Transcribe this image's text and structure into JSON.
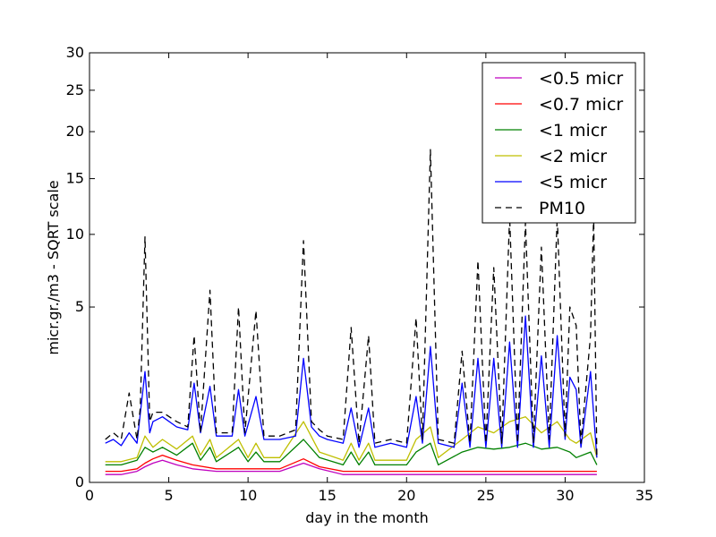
{
  "chart_data": {
    "type": "line",
    "title": "",
    "xlabel": "day in the month",
    "ylabel": "micr.gr./m3 - SQRT scale",
    "xlim": [
      0,
      35
    ],
    "ylim": [
      0,
      30
    ],
    "y_scale": "sqrt",
    "grid": false,
    "legend_position": "top-right",
    "x_ticks": [
      "0",
      "5",
      "10",
      "15",
      "20",
      "25",
      "30",
      "35"
    ],
    "y_ticks": [
      "0",
      "5",
      "10",
      "15",
      "20",
      "25",
      "30"
    ],
    "x_tick_values": [
      0,
      5,
      10,
      15,
      20,
      25,
      30,
      35
    ],
    "y_tick_values": [
      0,
      5,
      10,
      15,
      20,
      25,
      30
    ],
    "series": [
      {
        "name": "<0.5 micr",
        "color": "#bf00bf",
        "style": "solid",
        "points": [
          [
            1,
            0.01
          ],
          [
            2,
            0.01
          ],
          [
            3,
            0.02
          ],
          [
            3.5,
            0.04
          ],
          [
            4,
            0.06
          ],
          [
            4.6,
            0.08
          ],
          [
            5.5,
            0.05
          ],
          [
            6.5,
            0.03
          ],
          [
            8,
            0.02
          ],
          [
            10,
            0.02
          ],
          [
            12,
            0.02
          ],
          [
            13.5,
            0.06
          ],
          [
            14.5,
            0.03
          ],
          [
            16,
            0.01
          ],
          [
            18,
            0.01
          ],
          [
            20,
            0.01
          ],
          [
            22,
            0.01
          ],
          [
            24,
            0.01
          ],
          [
            26,
            0.01
          ],
          [
            28,
            0.01
          ],
          [
            30,
            0.01
          ],
          [
            32,
            0.01
          ]
        ]
      },
      {
        "name": "<0.7 micr",
        "color": "#ff0000",
        "style": "solid",
        "points": [
          [
            1,
            0.02
          ],
          [
            2,
            0.02
          ],
          [
            3,
            0.03
          ],
          [
            3.5,
            0.06
          ],
          [
            4,
            0.09
          ],
          [
            4.6,
            0.12
          ],
          [
            5.5,
            0.08
          ],
          [
            6.5,
            0.05
          ],
          [
            8,
            0.03
          ],
          [
            10,
            0.03
          ],
          [
            12,
            0.03
          ],
          [
            13.5,
            0.09
          ],
          [
            14.5,
            0.04
          ],
          [
            16,
            0.02
          ],
          [
            18,
            0.02
          ],
          [
            20,
            0.02
          ],
          [
            22,
            0.02
          ],
          [
            24,
            0.02
          ],
          [
            26,
            0.02
          ],
          [
            28,
            0.02
          ],
          [
            30,
            0.02
          ],
          [
            32,
            0.02
          ]
        ]
      },
      {
        "name": "<1 micr",
        "color": "#008000",
        "style": "solid",
        "points": [
          [
            1,
            0.05
          ],
          [
            2,
            0.05
          ],
          [
            3,
            0.08
          ],
          [
            3.5,
            0.2
          ],
          [
            4,
            0.15
          ],
          [
            4.6,
            0.2
          ],
          [
            5.5,
            0.12
          ],
          [
            6.5,
            0.25
          ],
          [
            7,
            0.08
          ],
          [
            7.6,
            0.2
          ],
          [
            8,
            0.07
          ],
          [
            9.4,
            0.2
          ],
          [
            10,
            0.07
          ],
          [
            10.5,
            0.15
          ],
          [
            11,
            0.07
          ],
          [
            12,
            0.07
          ],
          [
            13.5,
            0.3
          ],
          [
            14.5,
            0.1
          ],
          [
            16,
            0.05
          ],
          [
            16.5,
            0.15
          ],
          [
            17,
            0.05
          ],
          [
            17.6,
            0.15
          ],
          [
            18,
            0.05
          ],
          [
            20,
            0.05
          ],
          [
            20.6,
            0.15
          ],
          [
            21.5,
            0.25
          ],
          [
            22,
            0.05
          ],
          [
            23.5,
            0.15
          ],
          [
            24.5,
            0.2
          ],
          [
            25.5,
            0.18
          ],
          [
            26.5,
            0.2
          ],
          [
            27.5,
            0.25
          ],
          [
            28.5,
            0.18
          ],
          [
            29.5,
            0.2
          ],
          [
            30.3,
            0.15
          ],
          [
            30.7,
            0.1
          ],
          [
            31.6,
            0.15
          ],
          [
            32,
            0.05
          ]
        ]
      },
      {
        "name": "<2 micr",
        "color": "#bfbf00",
        "style": "solid",
        "points": [
          [
            1,
            0.07
          ],
          [
            2,
            0.07
          ],
          [
            3,
            0.1
          ],
          [
            3.5,
            0.35
          ],
          [
            4,
            0.2
          ],
          [
            4.6,
            0.3
          ],
          [
            5.5,
            0.18
          ],
          [
            6.5,
            0.35
          ],
          [
            7,
            0.12
          ],
          [
            7.6,
            0.3
          ],
          [
            8,
            0.1
          ],
          [
            9.4,
            0.3
          ],
          [
            10,
            0.1
          ],
          [
            10.5,
            0.25
          ],
          [
            11,
            0.1
          ],
          [
            12,
            0.1
          ],
          [
            13.5,
            0.6
          ],
          [
            14.5,
            0.15
          ],
          [
            16,
            0.08
          ],
          [
            16.5,
            0.25
          ],
          [
            17,
            0.08
          ],
          [
            17.6,
            0.25
          ],
          [
            18,
            0.08
          ],
          [
            20,
            0.08
          ],
          [
            20.6,
            0.3
          ],
          [
            21.5,
            0.5
          ],
          [
            22,
            0.1
          ],
          [
            23.5,
            0.3
          ],
          [
            24.5,
            0.5
          ],
          [
            25.5,
            0.4
          ],
          [
            26.5,
            0.6
          ],
          [
            27.5,
            0.7
          ],
          [
            28.5,
            0.4
          ],
          [
            29.5,
            0.6
          ],
          [
            30.3,
            0.3
          ],
          [
            30.7,
            0.25
          ],
          [
            31.6,
            0.4
          ],
          [
            32,
            0.1
          ]
        ]
      },
      {
        "name": "<5 micr",
        "color": "#0000ff",
        "style": "solid",
        "points": [
          [
            1,
            0.25
          ],
          [
            1.5,
            0.3
          ],
          [
            2,
            0.22
          ],
          [
            2.5,
            0.4
          ],
          [
            3,
            0.25
          ],
          [
            3.5,
            2.0
          ],
          [
            3.8,
            0.4
          ],
          [
            4,
            0.6
          ],
          [
            4.6,
            0.7
          ],
          [
            5.5,
            0.5
          ],
          [
            6.2,
            0.45
          ],
          [
            6.6,
            1.6
          ],
          [
            7,
            0.4
          ],
          [
            7.6,
            1.5
          ],
          [
            8,
            0.35
          ],
          [
            9,
            0.35
          ],
          [
            9.4,
            1.4
          ],
          [
            9.8,
            0.35
          ],
          [
            10.5,
            1.2
          ],
          [
            11,
            0.3
          ],
          [
            12,
            0.3
          ],
          [
            13,
            0.35
          ],
          [
            13.5,
            2.5
          ],
          [
            14,
            0.5
          ],
          [
            14.5,
            0.35
          ],
          [
            15,
            0.3
          ],
          [
            16,
            0.25
          ],
          [
            16.5,
            0.9
          ],
          [
            17,
            0.2
          ],
          [
            17.6,
            0.9
          ],
          [
            18,
            0.2
          ],
          [
            19,
            0.25
          ],
          [
            20,
            0.2
          ],
          [
            20.6,
            1.2
          ],
          [
            21,
            0.25
          ],
          [
            21.5,
            3.0
          ],
          [
            22,
            0.25
          ],
          [
            23,
            0.2
          ],
          [
            23.5,
            1.6
          ],
          [
            24,
            0.2
          ],
          [
            24.5,
            2.5
          ],
          [
            25,
            0.2
          ],
          [
            25.5,
            2.5
          ],
          [
            26,
            0.2
          ],
          [
            26.5,
            3.2
          ],
          [
            27,
            0.2
          ],
          [
            27.5,
            4.5
          ],
          [
            28,
            0.2
          ],
          [
            28.5,
            2.6
          ],
          [
            29,
            0.2
          ],
          [
            29.5,
            3.5
          ],
          [
            30,
            0.3
          ],
          [
            30.3,
            1.8
          ],
          [
            30.7,
            1.4
          ],
          [
            31,
            0.2
          ],
          [
            31.6,
            2.0
          ],
          [
            32,
            0.1
          ]
        ]
      },
      {
        "name": "PM10",
        "color": "#000000",
        "style": "dashed",
        "points": [
          [
            1,
            0.3
          ],
          [
            1.5,
            0.4
          ],
          [
            2,
            0.3
          ],
          [
            2.5,
            1.3
          ],
          [
            3,
            0.3
          ],
          [
            3.2,
            0.9
          ],
          [
            3.5,
            9.8
          ],
          [
            3.8,
            0.6
          ],
          [
            4,
            0.8
          ],
          [
            4.6,
            0.8
          ],
          [
            5.5,
            0.6
          ],
          [
            6.2,
            0.5
          ],
          [
            6.6,
            3.5
          ],
          [
            7,
            0.4
          ],
          [
            7.6,
            6.0
          ],
          [
            8,
            0.4
          ],
          [
            9,
            0.4
          ],
          [
            9.4,
            5.0
          ],
          [
            9.8,
            0.4
          ],
          [
            10.5,
            4.8
          ],
          [
            11,
            0.35
          ],
          [
            12,
            0.35
          ],
          [
            13,
            0.45
          ],
          [
            13.5,
            9.5
          ],
          [
            14,
            0.6
          ],
          [
            14.5,
            0.45
          ],
          [
            15,
            0.35
          ],
          [
            16,
            0.3
          ],
          [
            16.5,
            3.9
          ],
          [
            17,
            0.25
          ],
          [
            17.6,
            3.5
          ],
          [
            18,
            0.25
          ],
          [
            19,
            0.3
          ],
          [
            20,
            0.25
          ],
          [
            20.6,
            4.4
          ],
          [
            21,
            0.3
          ],
          [
            21.5,
            18.0
          ],
          [
            22,
            0.3
          ],
          [
            23,
            0.25
          ],
          [
            23.5,
            2.8
          ],
          [
            24,
            0.25
          ],
          [
            24.5,
            8.0
          ],
          [
            25,
            0.25
          ],
          [
            25.5,
            7.5
          ],
          [
            26,
            0.25
          ],
          [
            26.5,
            11.5
          ],
          [
            27,
            0.25
          ],
          [
            27.5,
            11.0
          ],
          [
            28,
            0.25
          ],
          [
            28.5,
            9.0
          ],
          [
            29,
            0.3
          ],
          [
            29.5,
            11.5
          ],
          [
            30,
            0.35
          ],
          [
            30.3,
            5.0
          ],
          [
            30.7,
            4.0
          ],
          [
            31,
            0.25
          ],
          [
            31.6,
            3.5
          ],
          [
            31.8,
            11.5
          ],
          [
            32,
            0.1
          ]
        ]
      }
    ]
  }
}
